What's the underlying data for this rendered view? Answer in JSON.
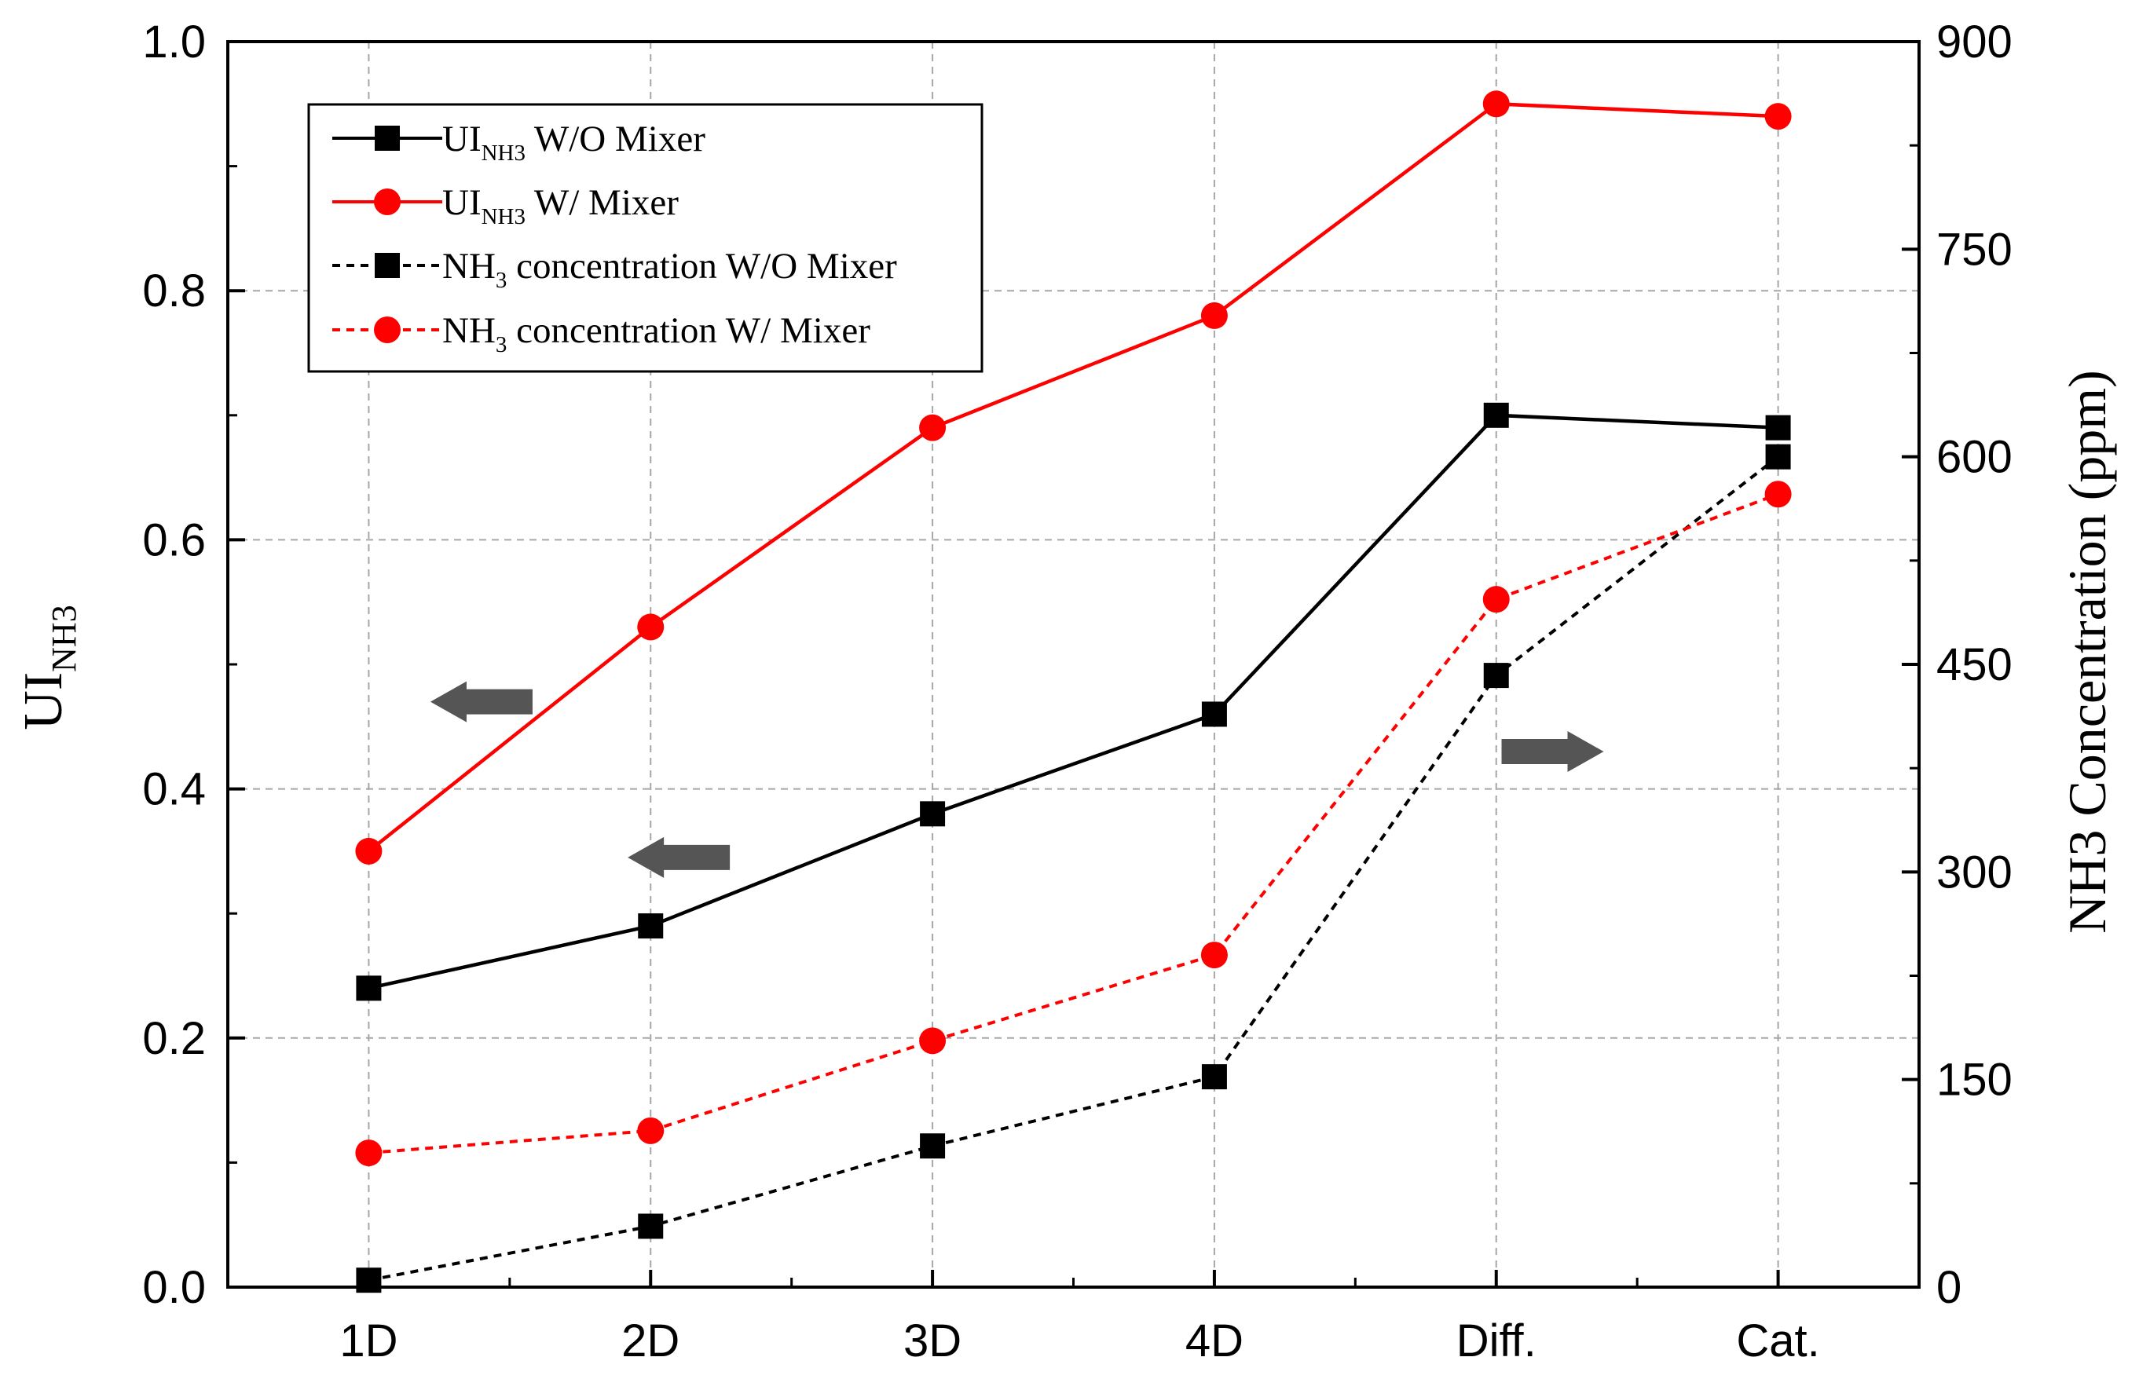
{
  "chart_data": {
    "type": "line",
    "categories": [
      "1D",
      "2D",
      "3D",
      "4D",
      "Diff.",
      "Cat."
    ],
    "left_axis": {
      "label_main": "UI",
      "label_sub": "NH3",
      "ylim": [
        0,
        1.0
      ],
      "ticks": [
        "0.0",
        "0.2",
        "0.4",
        "0.6",
        "0.8",
        "1.0"
      ]
    },
    "right_axis": {
      "label": "NH3 Concentration (ppm)",
      "ylim": [
        0,
        900
      ],
      "ticks": [
        "0",
        "150",
        "300",
        "450",
        "600",
        "750",
        "900"
      ]
    },
    "grid": true,
    "legend_position": "top-left",
    "series": [
      {
        "name_main": "UI",
        "name_sub": "NH3",
        "name_rest": " W/O Mixer",
        "axis": "left",
        "color": "#000000",
        "marker": "square",
        "line": "solid",
        "values": [
          0.24,
          0.29,
          0.38,
          0.46,
          0.7,
          0.69
        ]
      },
      {
        "name_main": "UI",
        "name_sub": "NH3",
        "name_rest": " W/ Mixer",
        "axis": "left",
        "color": "#ff0000",
        "marker": "circle",
        "line": "solid",
        "values": [
          0.35,
          0.53,
          0.69,
          0.78,
          0.95,
          0.94
        ]
      },
      {
        "name_main": "NH",
        "name_sub": "3",
        "name_rest": " concentration W/O Mixer",
        "axis": "right",
        "color": "#000000",
        "marker": "square",
        "line": "dashed",
        "values": [
          5,
          44,
          102,
          152,
          442,
          600
        ]
      },
      {
        "name_main": "NH",
        "name_sub": "3",
        "name_rest": " concentration W/ Mixer",
        "axis": "right",
        "color": "#ff0000",
        "marker": "circle",
        "line": "dashed",
        "values": [
          97,
          113,
          178,
          240,
          497,
          573
        ]
      }
    ],
    "annotations": [
      {
        "type": "arrow",
        "direction": "left",
        "points_to": "left axis",
        "at_category": 0.4,
        "at_value": 0.47
      },
      {
        "type": "arrow",
        "direction": "left",
        "points_to": "left axis",
        "at_category": 1.1,
        "at_value": 0.345
      },
      {
        "type": "arrow",
        "direction": "right",
        "points_to": "right axis",
        "at_category": 4.2,
        "at_value": 0.43
      }
    ]
  }
}
